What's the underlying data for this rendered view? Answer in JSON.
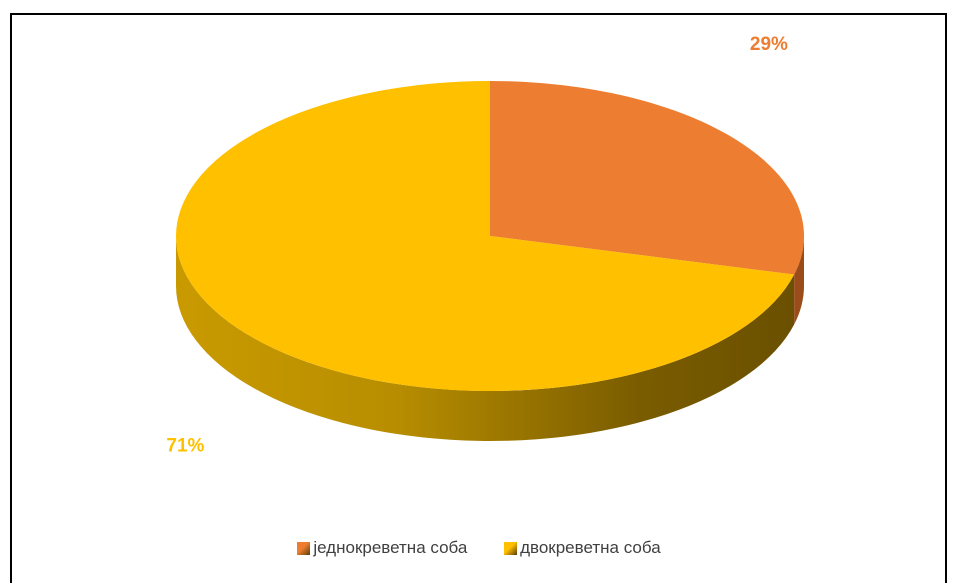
{
  "chart_data": {
    "type": "pie",
    "style": "3d",
    "categories": [
      "једнокреветна соба",
      "двокреветна соба"
    ],
    "values": [
      29,
      71
    ],
    "data_labels": [
      "29%",
      "71%"
    ],
    "colors": [
      "#ED7D31",
      "#FFC000"
    ],
    "legend_position": "bottom",
    "title": ""
  },
  "legend": {
    "items": [
      {
        "label": "једнокреветна соба",
        "color": "#ED7D31"
      },
      {
        "label": "двокреветна соба",
        "color": "#FFC000"
      }
    ]
  }
}
